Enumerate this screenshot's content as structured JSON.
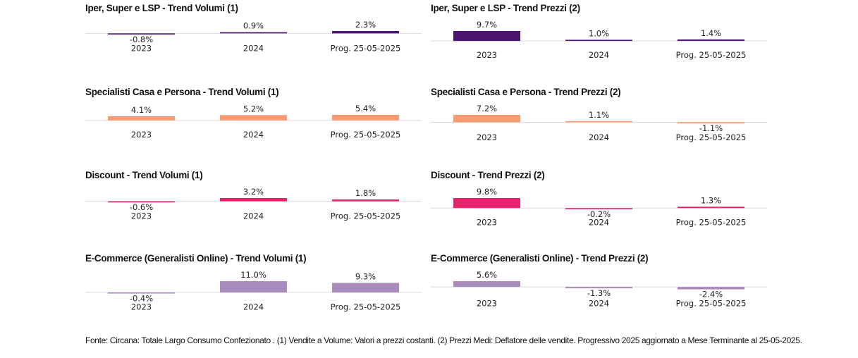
{
  "footnote": "Fonte: Circana: Totale Largo Consumo Confezionato . (1) Vendite a Volume: Valori a prezzi costanti. (2) Prezzi Medi: Deflatore delle vendite. Progressivo 2025 aggiornato a Mese Terminante al 25-05-2025.",
  "chart_data": [
    {
      "id": "iper-volumi",
      "type": "bar",
      "title": "Iper, Super e LSP - Trend Volumi (1)",
      "color": "#4b1470",
      "categories": [
        "2023",
        "2024",
        "Prog. 25-05-2025"
      ],
      "values": [
        -0.8,
        0.9,
        2.3
      ],
      "value_labels": [
        "-0.8%",
        "0.9%",
        "2.3%"
      ],
      "xlabel": "",
      "ylabel": ""
    },
    {
      "id": "iper-prezzi",
      "type": "bar",
      "title": "Iper, Super e LSP - Trend Prezzi (2)",
      "color": "#4b1470",
      "categories": [
        "2023",
        "2024",
        "Prog. 25-05-2025"
      ],
      "values": [
        9.7,
        1.0,
        1.4
      ],
      "value_labels": [
        "9.7%",
        "1.0%",
        "1.4%"
      ],
      "xlabel": "",
      "ylabel": ""
    },
    {
      "id": "casa-volumi",
      "type": "bar",
      "title": "Specialisti Casa e Persona - Trend Volumi (1)",
      "color": "#fa9a72",
      "categories": [
        "2023",
        "2024",
        "Prog. 25-05-2025"
      ],
      "values": [
        4.1,
        5.2,
        5.4
      ],
      "value_labels": [
        "4.1%",
        "5.2%",
        "5.4%"
      ],
      "xlabel": "",
      "ylabel": ""
    },
    {
      "id": "casa-prezzi",
      "type": "bar",
      "title": "Specialisti Casa e Persona - Trend Prezzi (2)",
      "color": "#fa9a72",
      "categories": [
        "2023",
        "2024",
        "Prog. 25-05-2025"
      ],
      "values": [
        7.2,
        1.1,
        -1.1
      ],
      "value_labels": [
        "7.2%",
        "1.1%",
        "-1.1%"
      ],
      "xlabel": "",
      "ylabel": ""
    },
    {
      "id": "discount-volumi",
      "type": "bar",
      "title": "Discount - Trend Volumi (1)",
      "color": "#e8236e",
      "categories": [
        "2023",
        "2024",
        "Prog. 25-05-2025"
      ],
      "values": [
        -0.6,
        3.2,
        1.8
      ],
      "value_labels": [
        "-0.6%",
        "3.2%",
        "1.8%"
      ],
      "xlabel": "",
      "ylabel": ""
    },
    {
      "id": "discount-prezzi",
      "type": "bar",
      "title": "Discount - Trend Prezzi (2)",
      "color": "#e8236e",
      "categories": [
        "2023",
        "2024",
        "Prog. 25-05-2025"
      ],
      "values": [
        9.8,
        -0.2,
        1.3
      ],
      "value_labels": [
        "9.8%",
        "-0.2%",
        "1.3%"
      ],
      "xlabel": "",
      "ylabel": ""
    },
    {
      "id": "ecom-volumi",
      "type": "bar",
      "title": "E-Commerce (Generalisti Online) - Trend Volumi (1)",
      "color": "#a98bbd",
      "categories": [
        "2023",
        "2024",
        "Prog. 25-05-2025"
      ],
      "values": [
        -0.4,
        11.0,
        9.3
      ],
      "value_labels": [
        "-0.4%",
        "11.0%",
        "9.3%"
      ],
      "xlabel": "",
      "ylabel": ""
    },
    {
      "id": "ecom-prezzi",
      "type": "bar",
      "title": "E-Commerce (Generalisti Online) - Trend Prezzi (2)",
      "color": "#a98bbd",
      "categories": [
        "2023",
        "2024",
        "Prog. 25-05-2025"
      ],
      "values": [
        5.6,
        -1.3,
        -2.4
      ],
      "value_labels": [
        "5.6%",
        "-1.3%",
        "-2.4%"
      ],
      "xlabel": "",
      "ylabel": ""
    }
  ]
}
